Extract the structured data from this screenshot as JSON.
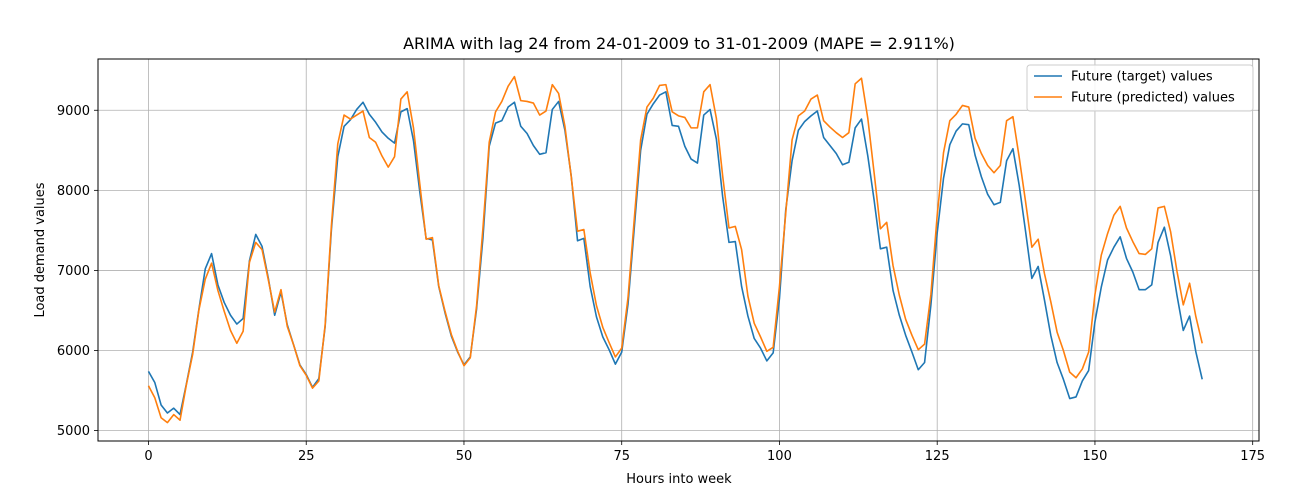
{
  "chart_data": {
    "type": "line",
    "title": "ARIMA with lag 24 from 24-01-2009 to 31-01-2009 (MAPE = 2.911%)",
    "xlabel": "Hours into week",
    "ylabel": "Load demand values",
    "xlim": [
      -8,
      176
    ],
    "ylim": [
      4870,
      9640
    ],
    "xticks": [
      0,
      25,
      50,
      75,
      100,
      125,
      150,
      175
    ],
    "yticks": [
      5000,
      6000,
      7000,
      8000,
      9000
    ],
    "grid": true,
    "legend_position": "top-right",
    "series": [
      {
        "name": "Future (target) values",
        "color": "#1f77b4",
        "values": [
          5740,
          5600,
          5320,
          5220,
          5280,
          5200,
          5580,
          5980,
          6520,
          7020,
          7210,
          6820,
          6600,
          6440,
          6330,
          6400,
          7120,
          7450,
          7300,
          6900,
          6440,
          6730,
          6320,
          6070,
          5820,
          5700,
          5540,
          5650,
          6300,
          7520,
          8420,
          8800,
          8880,
          9010,
          9100,
          8950,
          8850,
          8730,
          8650,
          8590,
          8980,
          9020,
          8620,
          7980,
          7400,
          7380,
          6800,
          6470,
          6180,
          5980,
          5820,
          5920,
          6520,
          7400,
          8550,
          8840,
          8870,
          9040,
          9100,
          8800,
          8710,
          8560,
          8450,
          8470,
          9010,
          9110,
          8750,
          8180,
          7370,
          7400,
          6800,
          6420,
          6170,
          6010,
          5830,
          5980,
          6580,
          7540,
          8500,
          8950,
          9080,
          9190,
          9230,
          8810,
          8800,
          8550,
          8390,
          8340,
          8940,
          9010,
          8640,
          7920,
          7350,
          7360,
          6800,
          6430,
          6150,
          6030,
          5870,
          5970,
          6650,
          7760,
          8370,
          8750,
          8860,
          8930,
          8990,
          8660,
          8560,
          8460,
          8320,
          8350,
          8780,
          8890,
          8430,
          7880,
          7270,
          7290,
          6750,
          6440,
          6190,
          5980,
          5760,
          5850,
          6570,
          7470,
          8150,
          8570,
          8740,
          8830,
          8820,
          8440,
          8170,
          7950,
          7820,
          7850,
          8370,
          8520,
          8060,
          7490,
          6900,
          7050,
          6630,
          6190,
          5850,
          5640,
          5400,
          5420,
          5620,
          5750,
          6360,
          6790,
          7130,
          7290,
          7420,
          7150,
          6980,
          6760,
          6760,
          6820,
          7350,
          7540,
          7180,
          6690,
          6250,
          6430,
          5980,
          5640
        ]
      },
      {
        "name": "Future (predicted) values",
        "color": "#ff7f0e",
        "values": [
          5560,
          5410,
          5160,
          5100,
          5200,
          5130,
          5570,
          5950,
          6510,
          6890,
          7090,
          6750,
          6490,
          6250,
          6090,
          6240,
          7100,
          7350,
          7260,
          6880,
          6480,
          6760,
          6300,
          6070,
          5810,
          5690,
          5530,
          5620,
          6320,
          7570,
          8580,
          8940,
          8890,
          8940,
          8990,
          8660,
          8600,
          8430,
          8290,
          8420,
          9140,
          9230,
          8780,
          8080,
          7390,
          7410,
          6810,
          6490,
          6200,
          5990,
          5810,
          5910,
          6560,
          7520,
          8600,
          8980,
          9110,
          9300,
          9420,
          9120,
          9110,
          9090,
          8940,
          8990,
          9320,
          9210,
          8800,
          8170,
          7490,
          7510,
          6970,
          6560,
          6290,
          6100,
          5920,
          6030,
          6660,
          7650,
          8630,
          9040,
          9150,
          9310,
          9320,
          8980,
          8930,
          8910,
          8780,
          8780,
          9230,
          9320,
          8900,
          8180,
          7530,
          7550,
          7260,
          6680,
          6340,
          6170,
          5990,
          6040,
          6800,
          7720,
          8630,
          8930,
          8990,
          9140,
          9190,
          8870,
          8790,
          8720,
          8660,
          8720,
          9330,
          9400,
          8900,
          8220,
          7520,
          7600,
          7060,
          6690,
          6390,
          6190,
          6010,
          6080,
          6700,
          7690,
          8470,
          8870,
          8950,
          9060,
          9040,
          8650,
          8460,
          8310,
          8220,
          8310,
          8870,
          8920,
          8410,
          7860,
          7290,
          7390,
          6960,
          6610,
          6230,
          6000,
          5730,
          5660,
          5770,
          5980,
          6700,
          7190,
          7460,
          7690,
          7800,
          7530,
          7360,
          7210,
          7200,
          7270,
          7780,
          7800,
          7480,
          6990,
          6570,
          6840,
          6420,
          6090
        ]
      }
    ]
  }
}
